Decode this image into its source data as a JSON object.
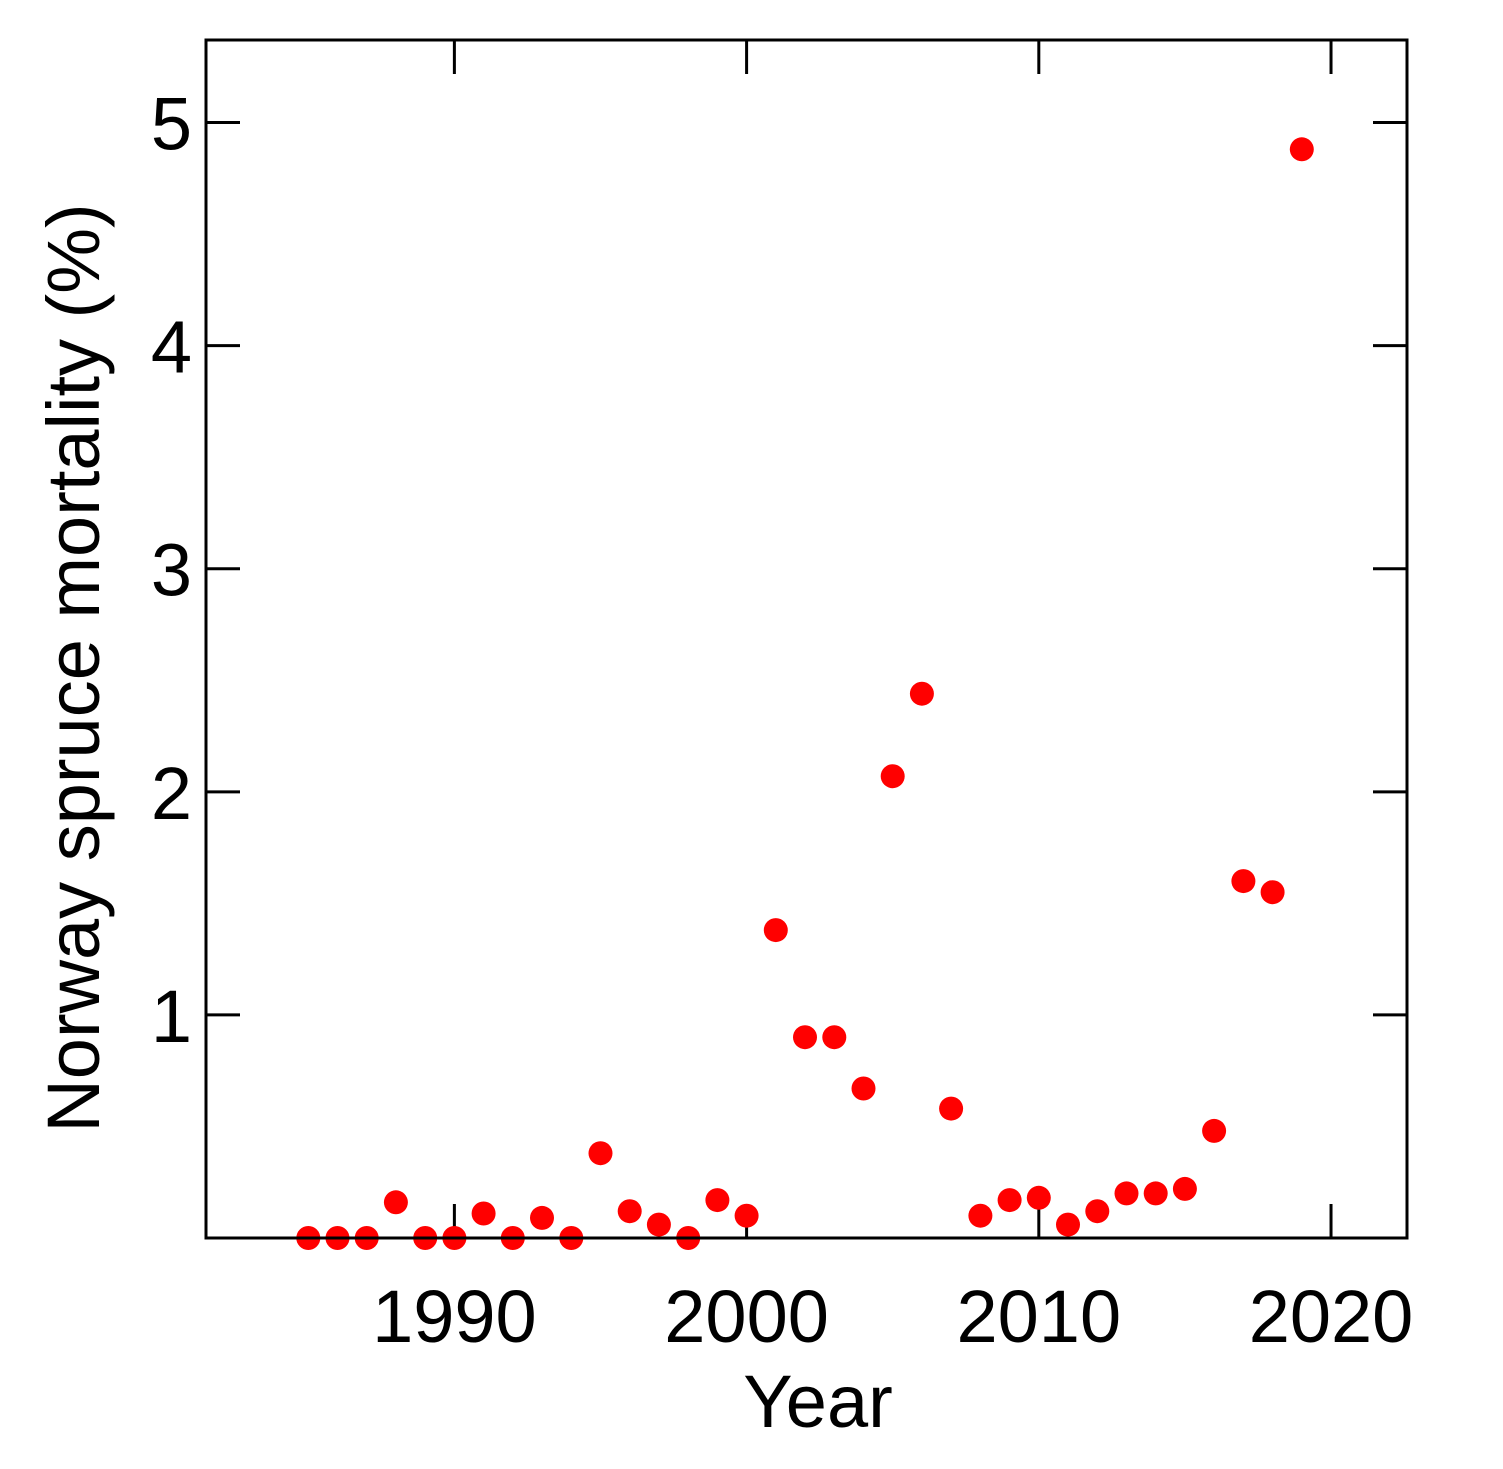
{
  "chart_data": {
    "type": "scatter",
    "title": "",
    "xlabel": "Year",
    "ylabel": "Norway spruce mortality (%)",
    "xlim": [
      1981.5,
      2022.6
    ],
    "ylim": [
      0,
      5.37
    ],
    "xticks": [
      1990,
      2000,
      2010,
      2020
    ],
    "yticks": [
      1,
      2,
      3,
      4,
      5
    ],
    "grid": false,
    "legend": "none",
    "marker_color": "#ff0000",
    "series": [
      {
        "x": [
          1985,
          1986,
          1987,
          1988,
          1989,
          1990,
          1991,
          1992,
          1993,
          1994,
          1995,
          1996,
          1997,
          1998,
          1999,
          2000,
          2001,
          2002,
          2003,
          2004,
          2005,
          2006,
          2007,
          2008,
          2009,
          2010,
          2011,
          2012,
          2013,
          2014,
          2015,
          2016,
          2017,
          2018,
          2019
        ],
        "y": [
          0.0,
          0.0,
          0.0,
          0.16,
          0.0,
          0.0,
          0.11,
          0.0,
          0.09,
          0.0,
          0.38,
          0.12,
          0.06,
          0.0,
          0.17,
          0.1,
          1.38,
          0.9,
          0.9,
          0.67,
          2.07,
          2.44,
          0.58,
          0.1,
          0.17,
          0.18,
          0.06,
          0.12,
          0.2,
          0.2,
          0.22,
          0.48,
          1.6,
          1.55,
          4.88
        ]
      }
    ]
  }
}
